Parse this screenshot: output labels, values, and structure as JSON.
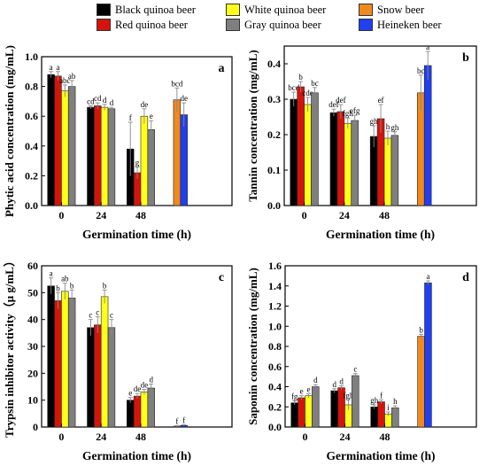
{
  "legend": {
    "items": [
      {
        "label": "Black quinoa beer",
        "color": "#000000"
      },
      {
        "label": "Red quinoa beer",
        "color": "#d4140c"
      },
      {
        "label": "White quinoa beer",
        "color": "#ffff1a"
      },
      {
        "label": "Gray quinoa beer",
        "color": "#7f7f7f"
      },
      {
        "label": "Snow beer",
        "color": "#f0891e"
      },
      {
        "label": "Heineken beer",
        "color": "#1f3ff0"
      }
    ]
  },
  "chart_data": [
    {
      "panel": "a",
      "type": "bar",
      "ylabel": "Phytic acid concentration (mg/mL)",
      "xlabel": "Germination time (h)",
      "ylim": [
        0.0,
        1.0
      ],
      "yticks": [
        "0.0",
        "0.2",
        "0.4",
        "0.6",
        "0.8",
        "1.0"
      ],
      "categories": [
        "0",
        "24",
        "48"
      ],
      "series": [
        {
          "name": "Black quinoa beer",
          "values": [
            0.88,
            0.66,
            0.38
          ],
          "errors": [
            0.02,
            0.01,
            0.18
          ],
          "letters": [
            "a",
            "cd",
            "f"
          ]
        },
        {
          "name": "Red quinoa beer",
          "values": [
            0.87,
            0.67,
            0.22
          ],
          "errors": [
            0.03,
            0.02,
            0.04
          ],
          "letters": [
            "a",
            "cd",
            "g"
          ]
        },
        {
          "name": "White quinoa beer",
          "values": [
            0.77,
            0.66,
            0.6
          ],
          "errors": [
            0.04,
            0.02,
            0.05
          ],
          "letters": [
            "abc",
            "d",
            "de"
          ]
        },
        {
          "name": "Gray quinoa beer",
          "values": [
            0.8,
            0.65,
            0.51
          ],
          "errors": [
            0.04,
            0.01,
            0.06
          ],
          "letters": [
            "ab",
            "d",
            "e"
          ]
        }
      ],
      "commercial": [
        {
          "name": "Snow beer",
          "value": 0.71,
          "error": 0.08,
          "letter": "bcd"
        },
        {
          "name": "Heineken beer",
          "value": 0.61,
          "error": 0.08,
          "letter": "de"
        }
      ]
    },
    {
      "panel": "b",
      "type": "bar",
      "ylabel": "Tannin concentration (mg/mL)",
      "xlabel": "Germination time (h)",
      "ylim": [
        0.0,
        0.45
      ],
      "yticks": [
        "0.0",
        "0.1",
        "0.2",
        "0.3",
        "0.4"
      ],
      "categories": [
        "0",
        "24",
        "48"
      ],
      "series": [
        {
          "name": "Black quinoa beer",
          "values": [
            0.3,
            0.262,
            0.195
          ],
          "errors": [
            0.02,
            0.01,
            0.03
          ],
          "letters": [
            "bcd",
            "def",
            "gh"
          ]
        },
        {
          "name": "Red quinoa beer",
          "values": [
            0.335,
            0.265,
            0.245
          ],
          "errors": [
            0.015,
            0.02,
            0.04
          ],
          "letters": [
            "b",
            "def",
            "ef"
          ]
        },
        {
          "name": "White quinoa beer",
          "values": [
            0.285,
            0.232,
            0.19
          ],
          "errors": [
            0.02,
            0.015,
            0.02
          ],
          "letters": [
            "cde",
            "fgh",
            "h"
          ]
        },
        {
          "name": "Gray quinoa beer",
          "values": [
            0.318,
            0.24,
            0.198
          ],
          "errors": [
            0.015,
            0.015,
            0.01
          ],
          "letters": [
            "bc",
            "efg",
            "gh"
          ]
        }
      ],
      "commercial": [
        {
          "name": "Snow beer",
          "value": 0.318,
          "error": 0.05,
          "letter": "bc"
        },
        {
          "name": "Heineken beer",
          "value": 0.395,
          "error": 0.04,
          "letter": "a"
        }
      ]
    },
    {
      "panel": "c",
      "type": "bar",
      "ylabel": "Trypsin inhibitor activity（μ g/mL）",
      "xlabel": "Germination time (h)",
      "ylim": [
        0,
        60
      ],
      "yticks": [
        "0",
        "10",
        "20",
        "30",
        "40",
        "50",
        "60"
      ],
      "categories": [
        "0",
        "24",
        "48"
      ],
      "series": [
        {
          "name": "Black quinoa beer",
          "values": [
            52.5,
            37,
            10
          ],
          "errors": [
            3,
            3,
            1
          ],
          "letters": [
            "a",
            "c",
            "e"
          ]
        },
        {
          "name": "Red quinoa beer",
          "values": [
            47,
            38,
            11.5
          ],
          "errors": [
            3,
            3,
            1
          ],
          "letters": [
            "b",
            "c",
            "de"
          ]
        },
        {
          "name": "White quinoa beer",
          "values": [
            50.5,
            48.5,
            13
          ],
          "errors": [
            3,
            2.5,
            1
          ],
          "letters": [
            "ab",
            "b",
            "de"
          ]
        },
        {
          "name": "Gray quinoa beer",
          "values": [
            48,
            37,
            14.5
          ],
          "errors": [
            3,
            3,
            1.5
          ],
          "letters": [
            "b",
            "c",
            "d"
          ]
        }
      ],
      "commercial": [
        {
          "name": "Snow beer",
          "value": 0.3,
          "error": 0.2,
          "letter": "f"
        },
        {
          "name": "Heineken beer",
          "value": 0.6,
          "error": 0.2,
          "letter": "f"
        }
      ]
    },
    {
      "panel": "d",
      "type": "bar",
      "ylabel": "Saponin concentration (mg/mL)",
      "xlabel": "Germination time (h)",
      "ylim": [
        0.0,
        1.6
      ],
      "yticks": [
        "0.0",
        "0.2",
        "0.4",
        "0.6",
        "0.8",
        "1.0",
        "1.2",
        "1.4",
        "1.6"
      ],
      "categories": [
        "0",
        "24",
        "48"
      ],
      "series": [
        {
          "name": "Black quinoa beer",
          "values": [
            0.24,
            0.36,
            0.2
          ],
          "errors": [
            0.02,
            0.02,
            0.02
          ],
          "letters": [
            "fg",
            "d",
            "gh"
          ]
        },
        {
          "name": "Red quinoa beer",
          "values": [
            0.29,
            0.39,
            0.25
          ],
          "errors": [
            0.02,
            0.02,
            0.02
          ],
          "letters": [
            "e",
            "d",
            "f"
          ]
        },
        {
          "name": "White quinoa beer",
          "values": [
            0.31,
            0.22,
            0.13
          ],
          "errors": [
            0.02,
            0.05,
            0.02
          ],
          "letters": [
            "e",
            "fgh",
            "i"
          ]
        },
        {
          "name": "Gray quinoa beer",
          "values": [
            0.4,
            0.51,
            0.19
          ],
          "errors": [
            0.02,
            0.02,
            0.02
          ],
          "letters": [
            "d",
            "c",
            "h"
          ]
        }
      ],
      "commercial": [
        {
          "name": "Snow beer",
          "value": 0.9,
          "error": 0.02,
          "letter": "b"
        },
        {
          "name": "Heineken beer",
          "value": 1.43,
          "error": 0.02,
          "letter": "a"
        }
      ]
    }
  ]
}
